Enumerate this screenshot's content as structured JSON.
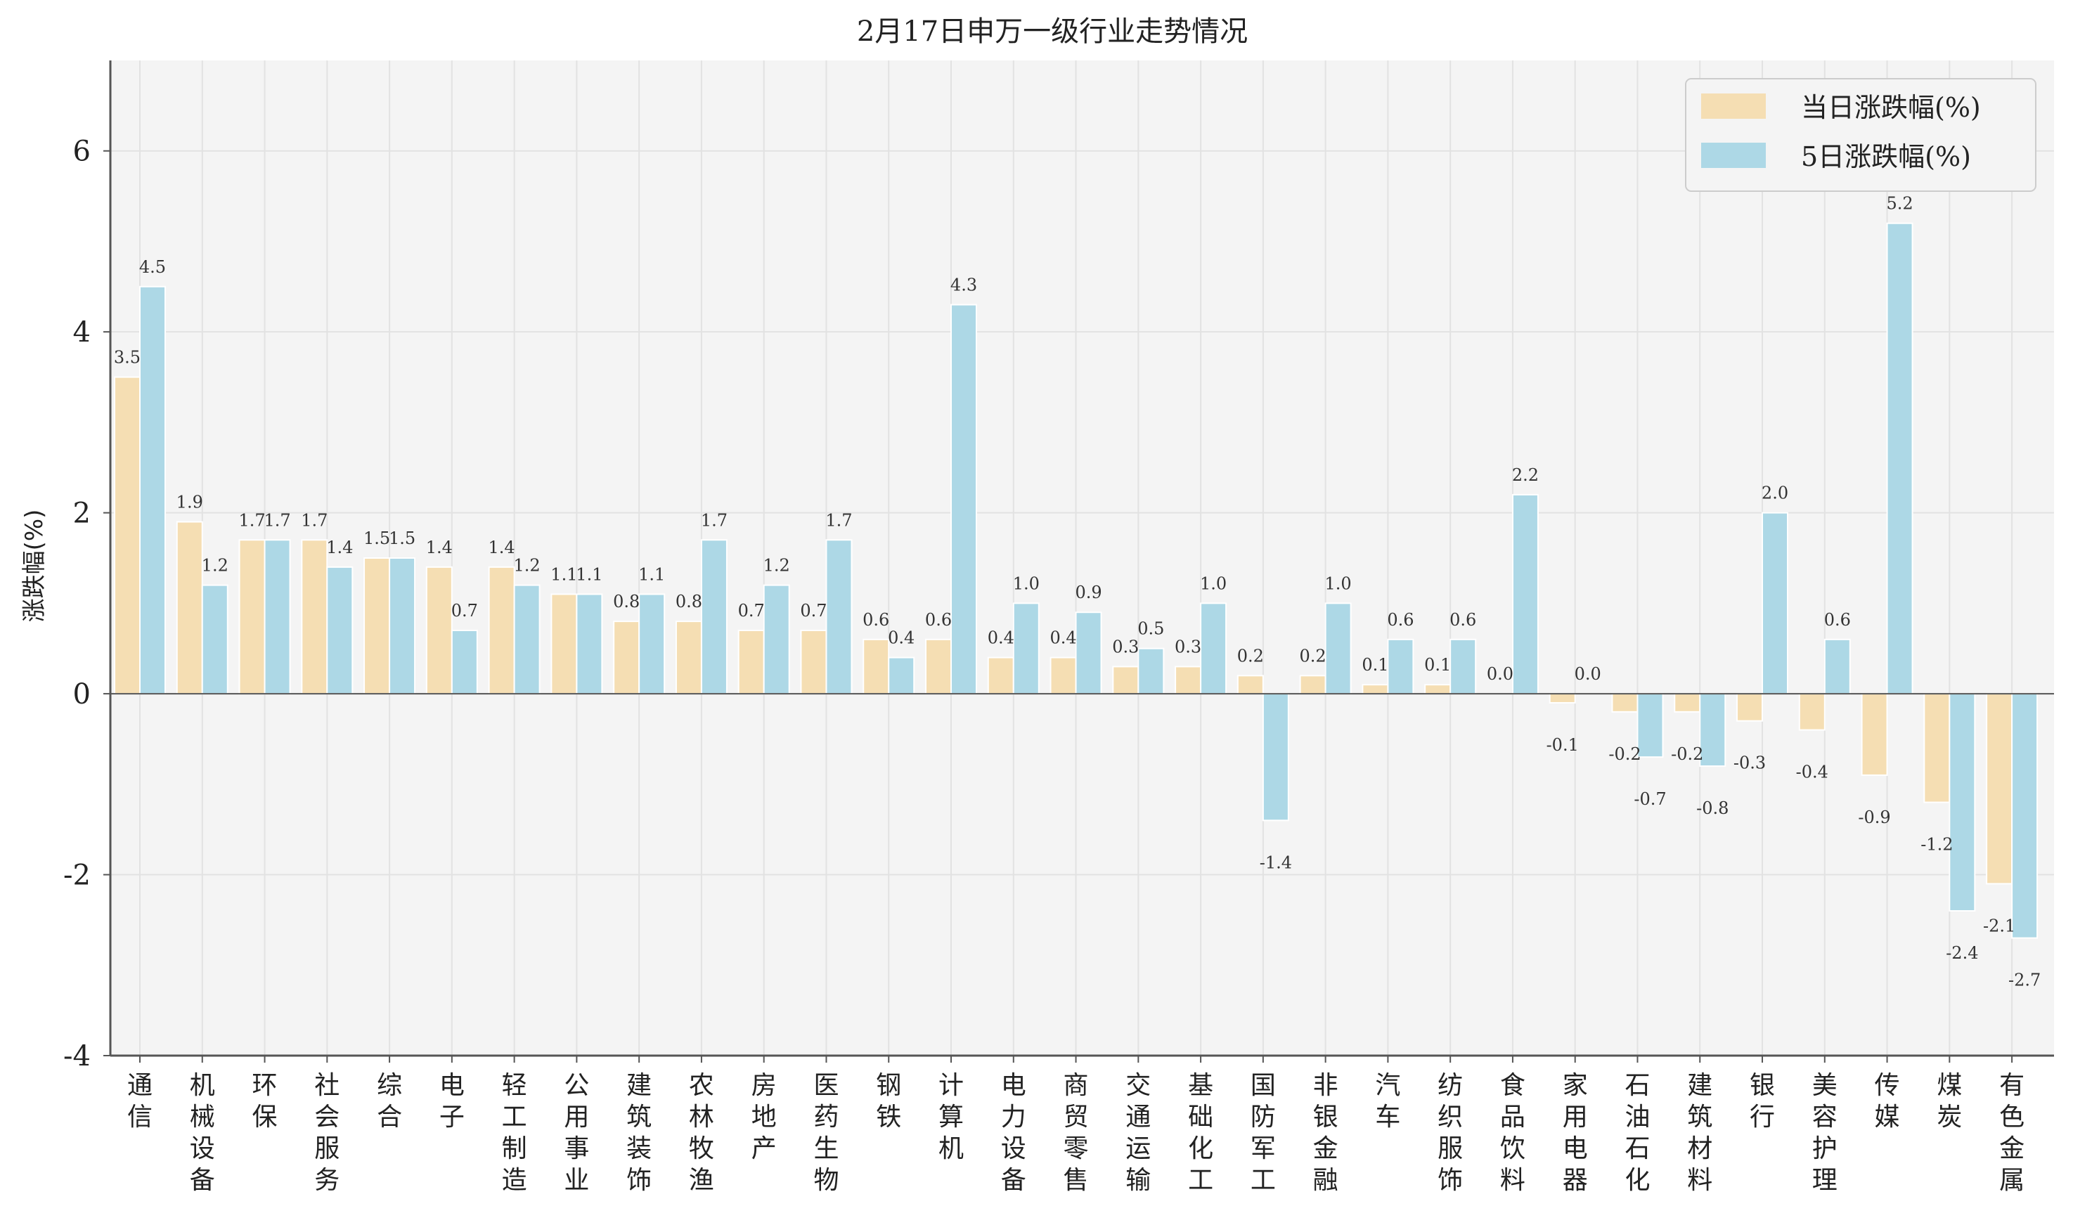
{
  "chart_data": {
    "type": "bar",
    "title": "2月17日申万一级行业走势情况",
    "xlabel": "",
    "ylabel": "涨跌幅(%)",
    "ylim": [
      -4,
      7
    ],
    "yticks": [
      -4,
      -2,
      0,
      2,
      4,
      6
    ],
    "grid": true,
    "legend_position": "top-right",
    "categories": [
      "通信",
      "机械设备",
      "环保",
      "社会服务",
      "综合",
      "电子",
      "轻工制造",
      "公用事业",
      "建筑装饰",
      "农林牧渔",
      "房地产",
      "医药生物",
      "钢铁",
      "计算机",
      "电力设备",
      "商贸零售",
      "交通运输",
      "基础化工",
      "国防军工",
      "非银金融",
      "汽车",
      "纺织服饰",
      "食品饮料",
      "家用电器",
      "石油石化",
      "建筑材料",
      "银行",
      "美容护理",
      "传媒",
      "煤炭",
      "有色金属"
    ],
    "series": [
      {
        "name": "当日涨跌幅(%)",
        "color": "#F5DEB3",
        "values": [
          3.5,
          1.9,
          1.7,
          1.7,
          1.5,
          1.4,
          1.4,
          1.1,
          0.8,
          0.8,
          0.7,
          0.7,
          0.6,
          0.6,
          0.4,
          0.4,
          0.3,
          0.3,
          0.2,
          0.2,
          0.1,
          0.1,
          0.0,
          -0.1,
          -0.2,
          -0.2,
          -0.3,
          -0.4,
          -0.9,
          -1.2,
          -2.1
        ]
      },
      {
        "name": "5日涨跌幅(%)",
        "color": "#ADD8E6",
        "values": [
          4.5,
          1.2,
          1.7,
          1.4,
          1.5,
          0.7,
          1.2,
          1.1,
          1.1,
          1.7,
          1.2,
          1.7,
          0.4,
          4.3,
          1.0,
          0.9,
          0.5,
          1.0,
          -1.4,
          1.0,
          0.6,
          0.6,
          2.2,
          0.0,
          -0.7,
          -0.8,
          2.0,
          0.6,
          5.2,
          -2.4,
          -2.7
        ]
      }
    ]
  },
  "colors": {
    "plot_background": "#F4F4F4",
    "grid": "#E2E2E2",
    "axis": "#555555"
  }
}
